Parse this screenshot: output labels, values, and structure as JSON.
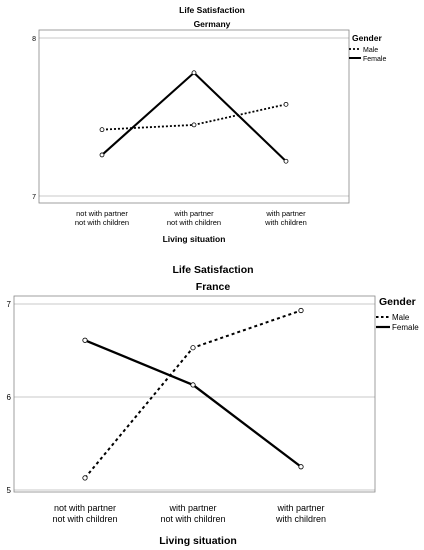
{
  "chart_data": [
    {
      "type": "line",
      "title": "Life Satisfaction",
      "subtitle": "Germany",
      "xlabel": "Living situation",
      "ylabel": "",
      "categories": [
        [
          "not with partner",
          "not with children"
        ],
        [
          "with partner",
          "not with children"
        ],
        [
          "with partner",
          "with children"
        ]
      ],
      "yticks": [
        "8",
        "7"
      ],
      "ylim": [
        7,
        8
      ],
      "grid": true,
      "legend": {
        "title": "Gender",
        "placement": "right",
        "entries": [
          "Male",
          "Female"
        ]
      },
      "series": [
        {
          "name": "Male",
          "style": "dashed",
          "values": [
            7.42,
            7.45,
            7.58
          ]
        },
        {
          "name": "Female",
          "style": "solid",
          "values": [
            7.26,
            7.78,
            7.22
          ]
        }
      ]
    },
    {
      "type": "line",
      "title": "Life Satisfaction",
      "subtitle": "France",
      "xlabel": "Living situation",
      "ylabel": "",
      "categories": [
        [
          "not with partner",
          "not with children"
        ],
        [
          "with partner",
          "not with children"
        ],
        [
          "with partner",
          "with children"
        ]
      ],
      "yticks": [
        "7",
        "6",
        "5"
      ],
      "ylim": [
        5,
        7
      ],
      "grid": true,
      "legend": {
        "title": "Gender",
        "placement": "right",
        "entries": [
          "Male",
          "Female"
        ]
      },
      "series": [
        {
          "name": "Male",
          "style": "dashed",
          "values": [
            5.13,
            6.53,
            6.93
          ]
        },
        {
          "name": "Female",
          "style": "solid",
          "values": [
            6.61,
            6.13,
            5.25
          ]
        }
      ]
    }
  ],
  "colors": {
    "line": "#000000",
    "grid": "#c8c8c8",
    "axis": "#000000"
  }
}
